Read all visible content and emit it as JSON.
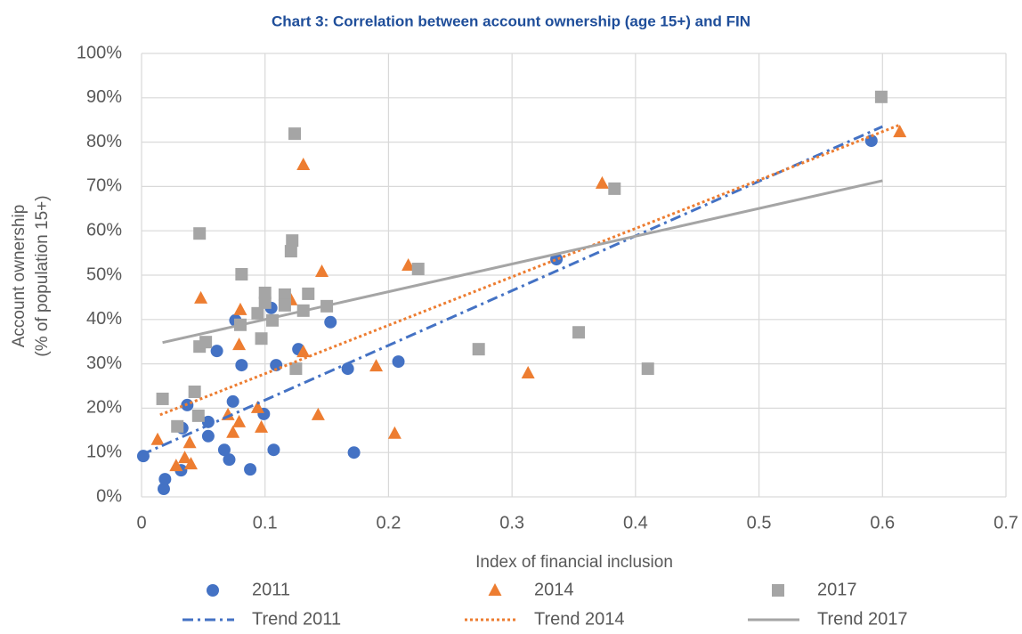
{
  "chart_data": {
    "type": "scatter",
    "title": "Chart 3: Correlation between account ownership (age 15+) and FIN",
    "xlabel": "Index of financial inclusion",
    "ylabel": [
      "Account ownership",
      "(% of population 15+)"
    ],
    "xlim": [
      0,
      0.7
    ],
    "xticks": [
      0,
      0.1,
      0.2,
      0.3,
      0.4,
      0.5,
      0.6,
      0.7
    ],
    "ylim": [
      0,
      100
    ],
    "yticks": [
      {
        "value": 0,
        "label": "0%"
      },
      {
        "value": 10,
        "label": "10%"
      },
      {
        "value": 20,
        "label": "20%"
      },
      {
        "value": 30,
        "label": "30%"
      },
      {
        "value": 40,
        "label": "40%"
      },
      {
        "value": 50,
        "label": "50%"
      },
      {
        "value": 60,
        "label": "60%"
      },
      {
        "value": 70,
        "label": "70%"
      },
      {
        "value": 80,
        "label": "80%"
      },
      {
        "value": 90,
        "label": "90%"
      },
      {
        "value": 100,
        "label": "100%"
      }
    ],
    "grid": true,
    "legend": "bottom",
    "series": [
      {
        "name": "2011",
        "color": "#4472c4",
        "marker": "circle",
        "x": [
          0.0014,
          0.018,
          0.019,
          0.033,
          0.037,
          0.032,
          0.054,
          0.054,
          0.061,
          0.067,
          0.071,
          0.074,
          0.076,
          0.081,
          0.088,
          0.099,
          0.105,
          0.107,
          0.109,
          0.127,
          0.153,
          0.167,
          0.172,
          0.208,
          0.336,
          0.591
        ],
        "values": [
          9.2,
          1.8,
          4.0,
          15.5,
          20.7,
          6.0,
          16.9,
          13.7,
          32.9,
          10.6,
          8.4,
          21.5,
          39.8,
          29.7,
          6.2,
          18.7,
          42.6,
          10.6,
          29.7,
          33.3,
          39.4,
          28.9,
          10.0,
          30.5,
          53.6,
          80.3
        ]
      },
      {
        "name": "2014",
        "color": "#ed7d31",
        "marker": "triangle",
        "x": [
          0.013,
          0.028,
          0.035,
          0.04,
          0.039,
          0.048,
          0.07,
          0.074,
          0.079,
          0.079,
          0.08,
          0.094,
          0.097,
          0.121,
          0.131,
          0.131,
          0.143,
          0.146,
          0.19,
          0.205,
          0.216,
          0.313,
          0.373,
          0.614
        ],
        "values": [
          12.9,
          7.0,
          8.8,
          7.4,
          12.2,
          44.8,
          18.5,
          14.5,
          16.9,
          34.3,
          42.2,
          20.1,
          15.7,
          44.4,
          32.7,
          74.9,
          18.5,
          50.8,
          29.5,
          14.3,
          52.2,
          27.9,
          70.7,
          82.3
        ]
      },
      {
        "name": "2017",
        "color": "#a5a5a5",
        "marker": "square",
        "x": [
          0.017,
          0.029,
          0.043,
          0.046,
          0.047,
          0.052,
          0.047,
          0.08,
          0.081,
          0.094,
          0.097,
          0.1,
          0.1,
          0.106,
          0.116,
          0.116,
          0.121,
          0.122,
          0.124,
          0.125,
          0.131,
          0.135,
          0.15,
          0.224,
          0.273,
          0.354,
          0.383,
          0.41,
          0.599
        ],
        "values": [
          22.1,
          15.9,
          23.7,
          18.3,
          33.9,
          34.9,
          59.4,
          38.8,
          50.2,
          41.4,
          35.7,
          43.8,
          46.0,
          39.8,
          45.6,
          43.2,
          55.4,
          57.8,
          81.9,
          28.9,
          42.0,
          45.8,
          43.0,
          51.4,
          33.3,
          37.1,
          69.5,
          28.9,
          90.2
        ]
      },
      {
        "name": "Trend 2011",
        "color": "#4472c4",
        "line": "dashdot",
        "x": [
          0,
          0.6
        ],
        "values": [
          9.5,
          83.5
        ]
      },
      {
        "name": "Trend 2014",
        "color": "#ed7d31",
        "line": "dotted",
        "x": [
          0.015,
          0.615
        ],
        "values": [
          18.5,
          84
        ]
      },
      {
        "name": "Trend 2017",
        "color": "#a5a5a5",
        "line": "solid",
        "x": [
          0.017,
          0.6
        ],
        "values": [
          34.8,
          71.3
        ]
      }
    ]
  }
}
